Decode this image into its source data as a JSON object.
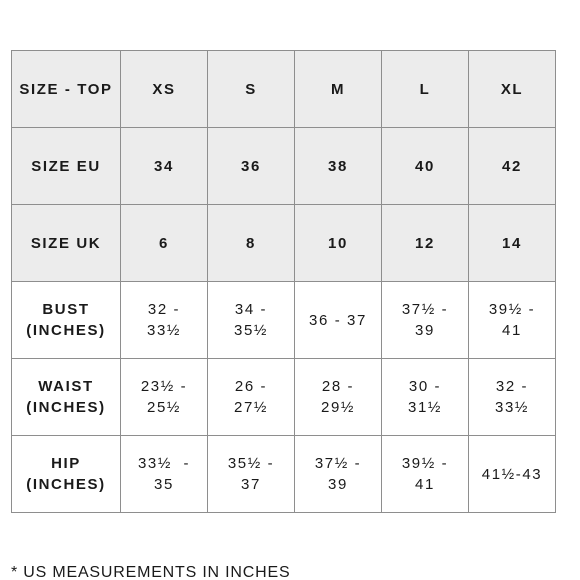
{
  "table": {
    "header_rows": [
      {
        "label": "SIZE - TOP",
        "values": [
          "XS",
          "S",
          "M",
          "L",
          "XL"
        ]
      },
      {
        "label": "SIZE EU",
        "values": [
          "34",
          "36",
          "38",
          "40",
          "42"
        ]
      },
      {
        "label": "SIZE UK",
        "values": [
          "6",
          "8",
          "10",
          "12",
          "14"
        ]
      }
    ],
    "measure_rows": [
      {
        "label_line1": "BUST",
        "label_line2": "(INCHES)",
        "values": [
          {
            "line1": "32 -",
            "line2": "33½"
          },
          {
            "line1": "34 -",
            "line2": "35½"
          },
          {
            "line1": "36 - 37",
            "line2": ""
          },
          {
            "line1": "37½ -",
            "line2": "39"
          },
          {
            "line1": "39½ -",
            "line2": "41"
          }
        ]
      },
      {
        "label_line1": "WAIST",
        "label_line2": "(INCHES)",
        "values": [
          {
            "line1": "23½ -",
            "line2": "25½"
          },
          {
            "line1": "26 -",
            "line2": "27½"
          },
          {
            "line1": "28 -",
            "line2": "29½"
          },
          {
            "line1": "30 -",
            "line2": "31½"
          },
          {
            "line1": "32 -",
            "line2": "33½"
          }
        ]
      },
      {
        "label_line1": "HIP",
        "label_line2": "(INCHES)",
        "values": [
          {
            "line1": "33½  -",
            "line2": "35"
          },
          {
            "line1": "35½ -",
            "line2": "37"
          },
          {
            "line1": "37½ -",
            "line2": "39"
          },
          {
            "line1": "39½ -",
            "line2": "41"
          },
          {
            "line1": "41½-43",
            "line2": ""
          }
        ]
      }
    ]
  },
  "footnote": "* US MEASUREMENTS IN INCHES"
}
